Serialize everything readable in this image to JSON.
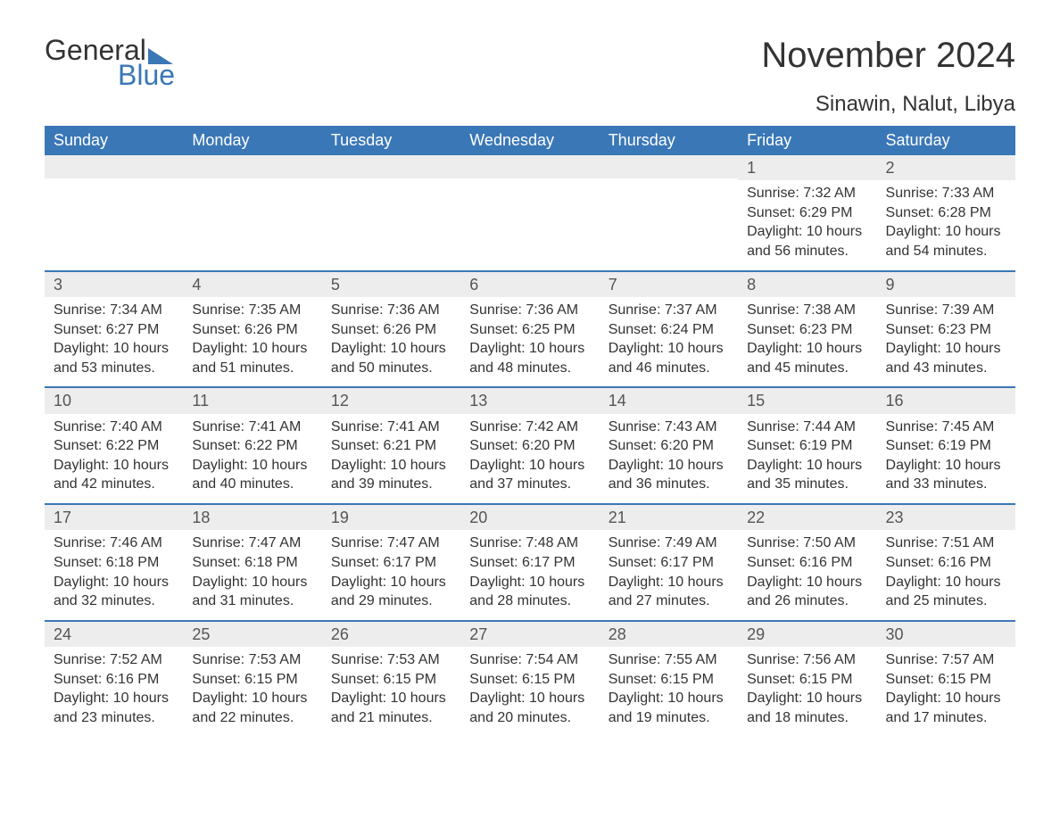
{
  "logo": {
    "word1": "General",
    "word2": "Blue",
    "triangle_color": "#3a77b7"
  },
  "title": "November 2024",
  "location": "Sinawin, Nalut, Libya",
  "colors": {
    "header_bg": "#3a77b7",
    "header_text": "#ffffff",
    "daynum_bg": "#ededed",
    "text": "#333333",
    "row_border": "#3a77b7",
    "page_bg": "#ffffff"
  },
  "typography": {
    "title_fontsize": 40,
    "location_fontsize": 24,
    "weekday_fontsize": 18,
    "daynum_fontsize": 18,
    "body_fontsize": 16,
    "font_family": "Arial"
  },
  "layout": {
    "columns": 7,
    "rows": 5,
    "first_weekday": "Sunday"
  },
  "weekdays": [
    "Sunday",
    "Monday",
    "Tuesday",
    "Wednesday",
    "Thursday",
    "Friday",
    "Saturday"
  ],
  "weeks": [
    [
      null,
      null,
      null,
      null,
      null,
      {
        "n": "1",
        "sunrise": "Sunrise: 7:32 AM",
        "sunset": "Sunset: 6:29 PM",
        "daylight": "Daylight: 10 hours and 56 minutes."
      },
      {
        "n": "2",
        "sunrise": "Sunrise: 7:33 AM",
        "sunset": "Sunset: 6:28 PM",
        "daylight": "Daylight: 10 hours and 54 minutes."
      }
    ],
    [
      {
        "n": "3",
        "sunrise": "Sunrise: 7:34 AM",
        "sunset": "Sunset: 6:27 PM",
        "daylight": "Daylight: 10 hours and 53 minutes."
      },
      {
        "n": "4",
        "sunrise": "Sunrise: 7:35 AM",
        "sunset": "Sunset: 6:26 PM",
        "daylight": "Daylight: 10 hours and 51 minutes."
      },
      {
        "n": "5",
        "sunrise": "Sunrise: 7:36 AM",
        "sunset": "Sunset: 6:26 PM",
        "daylight": "Daylight: 10 hours and 50 minutes."
      },
      {
        "n": "6",
        "sunrise": "Sunrise: 7:36 AM",
        "sunset": "Sunset: 6:25 PM",
        "daylight": "Daylight: 10 hours and 48 minutes."
      },
      {
        "n": "7",
        "sunrise": "Sunrise: 7:37 AM",
        "sunset": "Sunset: 6:24 PM",
        "daylight": "Daylight: 10 hours and 46 minutes."
      },
      {
        "n": "8",
        "sunrise": "Sunrise: 7:38 AM",
        "sunset": "Sunset: 6:23 PM",
        "daylight": "Daylight: 10 hours and 45 minutes."
      },
      {
        "n": "9",
        "sunrise": "Sunrise: 7:39 AM",
        "sunset": "Sunset: 6:23 PM",
        "daylight": "Daylight: 10 hours and 43 minutes."
      }
    ],
    [
      {
        "n": "10",
        "sunrise": "Sunrise: 7:40 AM",
        "sunset": "Sunset: 6:22 PM",
        "daylight": "Daylight: 10 hours and 42 minutes."
      },
      {
        "n": "11",
        "sunrise": "Sunrise: 7:41 AM",
        "sunset": "Sunset: 6:22 PM",
        "daylight": "Daylight: 10 hours and 40 minutes."
      },
      {
        "n": "12",
        "sunrise": "Sunrise: 7:41 AM",
        "sunset": "Sunset: 6:21 PM",
        "daylight": "Daylight: 10 hours and 39 minutes."
      },
      {
        "n": "13",
        "sunrise": "Sunrise: 7:42 AM",
        "sunset": "Sunset: 6:20 PM",
        "daylight": "Daylight: 10 hours and 37 minutes."
      },
      {
        "n": "14",
        "sunrise": "Sunrise: 7:43 AM",
        "sunset": "Sunset: 6:20 PM",
        "daylight": "Daylight: 10 hours and 36 minutes."
      },
      {
        "n": "15",
        "sunrise": "Sunrise: 7:44 AM",
        "sunset": "Sunset: 6:19 PM",
        "daylight": "Daylight: 10 hours and 35 minutes."
      },
      {
        "n": "16",
        "sunrise": "Sunrise: 7:45 AM",
        "sunset": "Sunset: 6:19 PM",
        "daylight": "Daylight: 10 hours and 33 minutes."
      }
    ],
    [
      {
        "n": "17",
        "sunrise": "Sunrise: 7:46 AM",
        "sunset": "Sunset: 6:18 PM",
        "daylight": "Daylight: 10 hours and 32 minutes."
      },
      {
        "n": "18",
        "sunrise": "Sunrise: 7:47 AM",
        "sunset": "Sunset: 6:18 PM",
        "daylight": "Daylight: 10 hours and 31 minutes."
      },
      {
        "n": "19",
        "sunrise": "Sunrise: 7:47 AM",
        "sunset": "Sunset: 6:17 PM",
        "daylight": "Daylight: 10 hours and 29 minutes."
      },
      {
        "n": "20",
        "sunrise": "Sunrise: 7:48 AM",
        "sunset": "Sunset: 6:17 PM",
        "daylight": "Daylight: 10 hours and 28 minutes."
      },
      {
        "n": "21",
        "sunrise": "Sunrise: 7:49 AM",
        "sunset": "Sunset: 6:17 PM",
        "daylight": "Daylight: 10 hours and 27 minutes."
      },
      {
        "n": "22",
        "sunrise": "Sunrise: 7:50 AM",
        "sunset": "Sunset: 6:16 PM",
        "daylight": "Daylight: 10 hours and 26 minutes."
      },
      {
        "n": "23",
        "sunrise": "Sunrise: 7:51 AM",
        "sunset": "Sunset: 6:16 PM",
        "daylight": "Daylight: 10 hours and 25 minutes."
      }
    ],
    [
      {
        "n": "24",
        "sunrise": "Sunrise: 7:52 AM",
        "sunset": "Sunset: 6:16 PM",
        "daylight": "Daylight: 10 hours and 23 minutes."
      },
      {
        "n": "25",
        "sunrise": "Sunrise: 7:53 AM",
        "sunset": "Sunset: 6:15 PM",
        "daylight": "Daylight: 10 hours and 22 minutes."
      },
      {
        "n": "26",
        "sunrise": "Sunrise: 7:53 AM",
        "sunset": "Sunset: 6:15 PM",
        "daylight": "Daylight: 10 hours and 21 minutes."
      },
      {
        "n": "27",
        "sunrise": "Sunrise: 7:54 AM",
        "sunset": "Sunset: 6:15 PM",
        "daylight": "Daylight: 10 hours and 20 minutes."
      },
      {
        "n": "28",
        "sunrise": "Sunrise: 7:55 AM",
        "sunset": "Sunset: 6:15 PM",
        "daylight": "Daylight: 10 hours and 19 minutes."
      },
      {
        "n": "29",
        "sunrise": "Sunrise: 7:56 AM",
        "sunset": "Sunset: 6:15 PM",
        "daylight": "Daylight: 10 hours and 18 minutes."
      },
      {
        "n": "30",
        "sunrise": "Sunrise: 7:57 AM",
        "sunset": "Sunset: 6:15 PM",
        "daylight": "Daylight: 10 hours and 17 minutes."
      }
    ]
  ]
}
